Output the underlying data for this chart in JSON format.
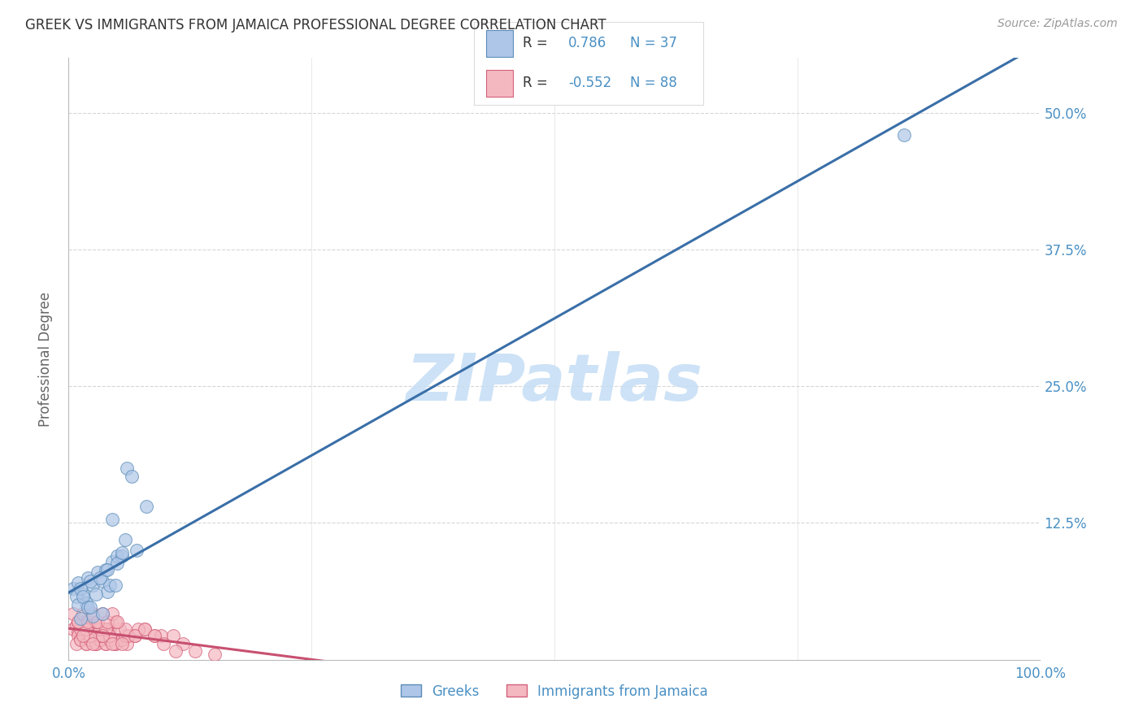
{
  "title": "GREEK VS IMMIGRANTS FROM JAMAICA PROFESSIONAL DEGREE CORRELATION CHART",
  "source": "Source: ZipAtlas.com",
  "ylabel": "Professional Degree",
  "xlabel": "",
  "watermark": "ZIPatlas",
  "xlim": [
    0,
    1.0
  ],
  "ylim": [
    0,
    0.55
  ],
  "xticks": [
    0.0,
    0.25,
    0.5,
    0.75,
    1.0
  ],
  "xtick_labels": [
    "0.0%",
    "",
    "",
    "",
    "100.0%"
  ],
  "ytick_labels": [
    "12.5%",
    "25.0%",
    "37.5%",
    "50.0%"
  ],
  "yticks": [
    0.125,
    0.25,
    0.375,
    0.5
  ],
  "greek_R": 0.786,
  "greek_N": 37,
  "jamaica_R": -0.552,
  "jamaica_N": 88,
  "greek_color": "#aec6e8",
  "jamaica_color": "#f4b8c1",
  "greek_edge_color": "#5b8db8",
  "jamaica_edge_color": "#d4607a",
  "greek_line_color": "#3a6fa8",
  "jamaica_line_color": "#c85070",
  "background_color": "#ffffff",
  "grid_color": "#cccccc",
  "title_color": "#333333",
  "axis_label_color": "#4a90c4",
  "legend_r_color": "#333333",
  "legend_value_color": "#4a90c4",
  "legend_n_color": "#4a90c4",
  "watermark_color": "#c8dff5",
  "greek_scatter_x": [
    0.005,
    0.01,
    0.015,
    0.02,
    0.025,
    0.03,
    0.035,
    0.04,
    0.045,
    0.05,
    0.008,
    0.012,
    0.018,
    0.022,
    0.028,
    0.038,
    0.042,
    0.055,
    0.06,
    0.065,
    0.01,
    0.015,
    0.025,
    0.032,
    0.048,
    0.058,
    0.07,
    0.02,
    0.035,
    0.05,
    0.86,
    0.08,
    0.045,
    0.012,
    0.022,
    0.055,
    0.04
  ],
  "greek_scatter_y": [
    0.065,
    0.07,
    0.06,
    0.075,
    0.068,
    0.08,
    0.072,
    0.062,
    0.09,
    0.095,
    0.058,
    0.065,
    0.052,
    0.072,
    0.06,
    0.082,
    0.068,
    0.095,
    0.175,
    0.168,
    0.05,
    0.058,
    0.04,
    0.075,
    0.068,
    0.11,
    0.1,
    0.048,
    0.042,
    0.088,
    0.48,
    0.14,
    0.128,
    0.038,
    0.048,
    0.098,
    0.082
  ],
  "jamaica_scatter_x": [
    0.005,
    0.008,
    0.01,
    0.012,
    0.015,
    0.018,
    0.02,
    0.022,
    0.025,
    0.028,
    0.01,
    0.015,
    0.018,
    0.022,
    0.025,
    0.028,
    0.032,
    0.035,
    0.038,
    0.042,
    0.012,
    0.018,
    0.022,
    0.028,
    0.032,
    0.038,
    0.042,
    0.048,
    0.052,
    0.06,
    0.008,
    0.012,
    0.018,
    0.022,
    0.028,
    0.032,
    0.038,
    0.042,
    0.048,
    0.055,
    0.018,
    0.022,
    0.028,
    0.032,
    0.038,
    0.042,
    0.058,
    0.068,
    0.078,
    0.088,
    0.012,
    0.022,
    0.032,
    0.042,
    0.052,
    0.062,
    0.072,
    0.095,
    0.108,
    0.118,
    0.01,
    0.018,
    0.028,
    0.038,
    0.048,
    0.058,
    0.068,
    0.078,
    0.088,
    0.098,
    0.005,
    0.01,
    0.015,
    0.02,
    0.025,
    0.03,
    0.035,
    0.04,
    0.045,
    0.05,
    0.015,
    0.025,
    0.035,
    0.045,
    0.055,
    0.11,
    0.13,
    0.15
  ],
  "jamaica_scatter_y": [
    0.028,
    0.032,
    0.025,
    0.03,
    0.035,
    0.025,
    0.03,
    0.025,
    0.028,
    0.032,
    0.022,
    0.028,
    0.022,
    0.028,
    0.022,
    0.028,
    0.022,
    0.028,
    0.022,
    0.028,
    0.018,
    0.015,
    0.018,
    0.015,
    0.018,
    0.015,
    0.018,
    0.015,
    0.018,
    0.015,
    0.015,
    0.018,
    0.015,
    0.018,
    0.015,
    0.018,
    0.015,
    0.018,
    0.015,
    0.018,
    0.028,
    0.022,
    0.028,
    0.022,
    0.028,
    0.022,
    0.022,
    0.022,
    0.028,
    0.022,
    0.028,
    0.022,
    0.028,
    0.022,
    0.028,
    0.022,
    0.028,
    0.022,
    0.022,
    0.015,
    0.035,
    0.028,
    0.035,
    0.028,
    0.035,
    0.028,
    0.022,
    0.028,
    0.022,
    0.015,
    0.042,
    0.035,
    0.042,
    0.035,
    0.042,
    0.035,
    0.042,
    0.035,
    0.042,
    0.035,
    0.022,
    0.015,
    0.022,
    0.015,
    0.015,
    0.008,
    0.008,
    0.005
  ]
}
